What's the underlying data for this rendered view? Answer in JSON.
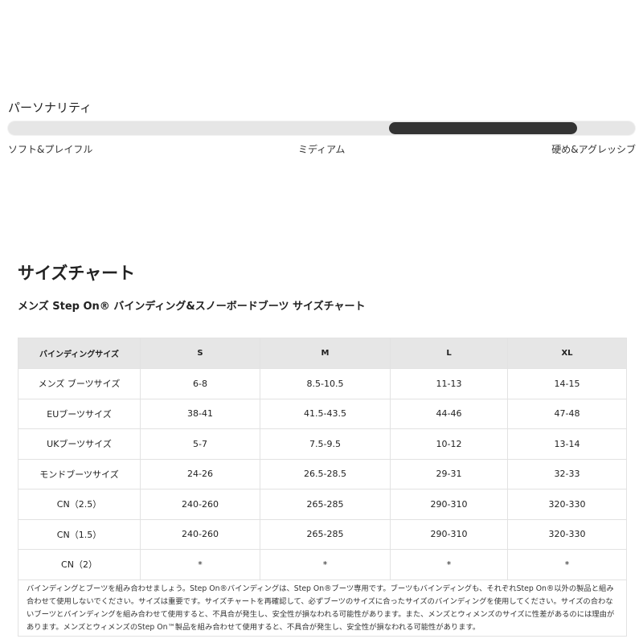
{
  "personality": {
    "title": "パーソナリティ",
    "range": [
      0.6,
      0.9
    ],
    "labels": [
      "ソフト&プレイフル",
      "ミディアム",
      "硬め&アグレッシブ"
    ],
    "fill_color": "#333333"
  },
  "size_chart": {
    "title": "サイズチャート",
    "subtitle": "メンズ Step On® バインディング&スノーボードブーツ サイズチャート",
    "headers": [
      "バインディングサイズ",
      "S",
      "M",
      "L",
      "XL"
    ],
    "rows": [
      [
        "メンズ ブーツサイズ",
        "6-8",
        "8.5-10.5",
        "11-13",
        "14-15"
      ],
      [
        "EUブーツサイズ",
        "38-41",
        "41.5-43.5",
        "44-46",
        "47-48"
      ],
      [
        "UKブーツサイズ",
        "5-7",
        "7.5-9.5",
        "10-12",
        "13-14"
      ],
      [
        "モンドブーツサイズ",
        "24-26",
        "26.5-28.5",
        "29-31",
        "32-33"
      ],
      [
        "CN（2.5）",
        "240-260",
        "265-285",
        "290-310",
        "320-330"
      ],
      [
        "CN（1.5）",
        "240-260",
        "265-285",
        "290-310",
        "320-330"
      ],
      [
        "CN（2）",
        "*",
        "*",
        "*",
        "*"
      ]
    ],
    "note": "バインディングとブーツを組み合わせましょう。Step On®バインディングは、Step On®ブーツ専用です。ブーツもバインディングも、それぞれStep On®以外の製品と組み合わせて使用しないでください。サイズは重要です。サイズチャートを再確認して、必ずブーツのサイズに合ったサイズのバインディングを使用してください。サイズの合わないブーツとバインディングを組み合わせて使用すると、不具合が発生し、安全性が損なわれる可能性があります。また、メンズとウィメンズのサイズに性差があるのには理由があります。メンズとウィメンズのStep On™製品を組み合わせて使用すると、不具合が発生し、安全性が損なわれる可能性があります。"
  }
}
